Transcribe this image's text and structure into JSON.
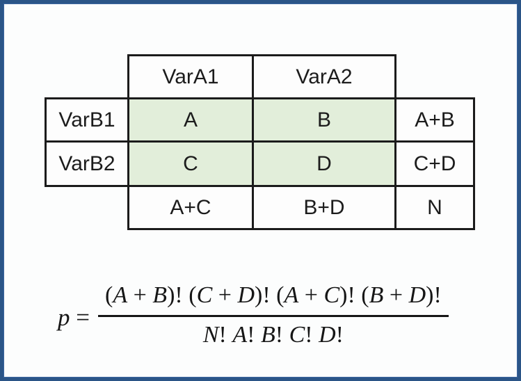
{
  "frame": {
    "border_color": "#2b5587",
    "background": "#fcfdfd"
  },
  "table": {
    "col_headers": [
      "VarA1",
      "VarA2"
    ],
    "row_headers": [
      "VarB1",
      "VarB2"
    ],
    "cells": [
      [
        "A",
        "B"
      ],
      [
        "C",
        "D"
      ]
    ],
    "row_totals": [
      "A+B",
      "C+D"
    ],
    "col_totals": [
      "A+C",
      "B+D"
    ],
    "grand_total": "N",
    "shaded_cell_color": "#e2eeda"
  },
  "formula": {
    "lhs": "p =",
    "numerator": "(A + B)! (C + D)! (A + C)! (B + D)!",
    "denominator": "N! A! B! C! D!"
  }
}
